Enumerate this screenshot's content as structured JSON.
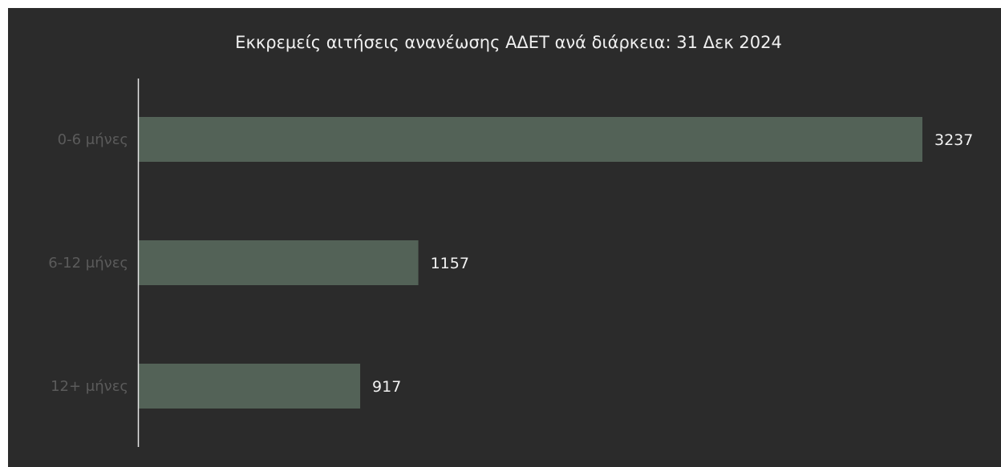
{
  "chart_data": {
    "type": "bar",
    "orientation": "horizontal",
    "title": "Εκκρεμείς αιτήσεις ανανέωσης ΑΔΕΤ ανά διάρκεια: 31 Δεκ 2024",
    "categories": [
      "0-6 μήνες",
      "6-12 μήνες",
      "12+ μήνες"
    ],
    "values": [
      3237,
      1157,
      917
    ],
    "xlabel": "",
    "ylabel": "",
    "xlim": [
      0,
      3237
    ],
    "grid": false,
    "legend": "none",
    "colors": {
      "background": "#2b2b2b",
      "bar": "#536257",
      "axis": "#e6e6e6",
      "title": "#f0f0f0",
      "category_label": "#5b5b5b",
      "value_label": "#f2f2f2"
    }
  }
}
